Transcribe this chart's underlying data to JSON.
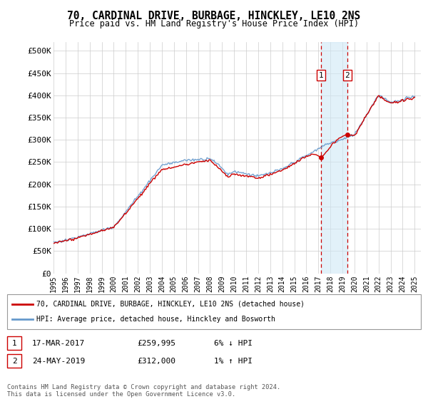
{
  "title": "70, CARDINAL DRIVE, BURBAGE, HINCKLEY, LE10 2NS",
  "subtitle": "Price paid vs. HM Land Registry's House Price Index (HPI)",
  "ylabel_ticks": [
    "£0",
    "£50K",
    "£100K",
    "£150K",
    "£200K",
    "£250K",
    "£300K",
    "£350K",
    "£400K",
    "£450K",
    "£500K"
  ],
  "ytick_values": [
    0,
    50000,
    100000,
    150000,
    200000,
    250000,
    300000,
    350000,
    400000,
    450000,
    500000
  ],
  "xlim_start": 1995.0,
  "xlim_end": 2025.5,
  "ylim": [
    0,
    520000
  ],
  "sale1_x": 2017.21,
  "sale1_y": 259995,
  "sale1_label": "1",
  "sale1_date": "17-MAR-2017",
  "sale1_price": "£259,995",
  "sale1_hpi": "6% ↓ HPI",
  "sale2_x": 2019.39,
  "sale2_y": 312000,
  "sale2_label": "2",
  "sale2_date": "24-MAY-2019",
  "sale2_price": "£312,000",
  "sale2_hpi": "1% ↑ HPI",
  "line1_color": "#cc0000",
  "line2_color": "#6699cc",
  "shade_color": "#d0e8f5",
  "grid_color": "#cccccc",
  "legend_line1": "70, CARDINAL DRIVE, BURBAGE, HINCKLEY, LE10 2NS (detached house)",
  "legend_line2": "HPI: Average price, detached house, Hinckley and Bosworth",
  "footnote": "Contains HM Land Registry data © Crown copyright and database right 2024.\nThis data is licensed under the Open Government Licence v3.0.",
  "xtick_years": [
    1995,
    1996,
    1997,
    1998,
    1999,
    2000,
    2001,
    2002,
    2003,
    2004,
    2005,
    2006,
    2007,
    2008,
    2009,
    2010,
    2011,
    2012,
    2013,
    2014,
    2015,
    2016,
    2017,
    2018,
    2019,
    2020,
    2021,
    2022,
    2023,
    2024,
    2025
  ]
}
